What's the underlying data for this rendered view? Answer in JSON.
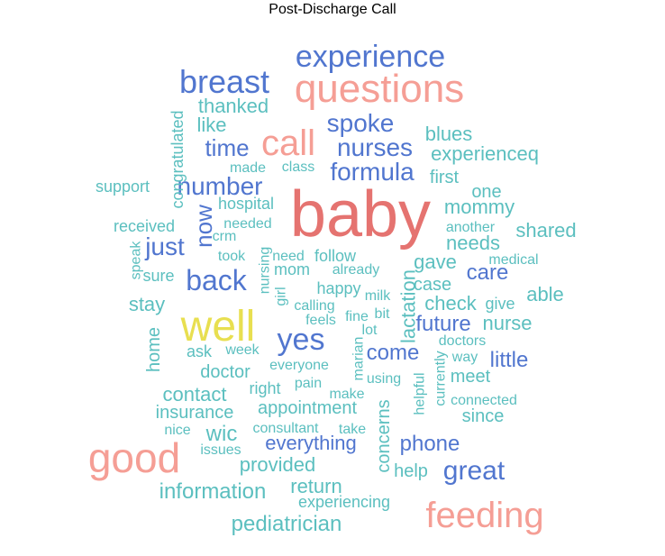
{
  "title": "Post-Discharge Call",
  "colors": {
    "red": "#e57370",
    "pink": "#f59e95",
    "blue": "#5176cf",
    "teal": "#5bbfbf",
    "yellow": "#e8df50"
  },
  "words": [
    {
      "text": "baby",
      "color": "red"
    },
    {
      "text": "well",
      "color": "yellow"
    },
    {
      "text": "questions",
      "color": "pink"
    },
    {
      "text": "good",
      "color": "pink"
    },
    {
      "text": "feeding",
      "color": "pink"
    },
    {
      "text": "call",
      "color": "pink"
    },
    {
      "text": "experience",
      "color": "blue"
    },
    {
      "text": "breast",
      "color": "blue"
    },
    {
      "text": "spoke",
      "color": "blue"
    },
    {
      "text": "nurses",
      "color": "blue"
    },
    {
      "text": "formula",
      "color": "blue"
    },
    {
      "text": "time",
      "color": "blue"
    },
    {
      "text": "number",
      "color": "blue"
    },
    {
      "text": "back",
      "color": "blue"
    },
    {
      "text": "yes",
      "color": "blue"
    },
    {
      "text": "great",
      "color": "blue"
    },
    {
      "text": "just",
      "color": "blue"
    },
    {
      "text": "now",
      "color": "blue"
    },
    {
      "text": "care",
      "color": "blue"
    },
    {
      "text": "future",
      "color": "blue"
    },
    {
      "text": "come",
      "color": "blue"
    },
    {
      "text": "little",
      "color": "blue"
    },
    {
      "text": "phone",
      "color": "blue"
    },
    {
      "text": "everything",
      "color": "blue"
    },
    {
      "text": "thanked",
      "color": "teal"
    },
    {
      "text": "like",
      "color": "teal"
    },
    {
      "text": "blues",
      "color": "teal"
    },
    {
      "text": "experienceq",
      "color": "teal"
    },
    {
      "text": "made",
      "color": "teal"
    },
    {
      "text": "class",
      "color": "teal"
    },
    {
      "text": "first",
      "color": "teal"
    },
    {
      "text": "support",
      "color": "teal"
    },
    {
      "text": "congratulated",
      "color": "teal"
    },
    {
      "text": "one",
      "color": "teal"
    },
    {
      "text": "hospital",
      "color": "teal"
    },
    {
      "text": "mommy",
      "color": "teal"
    },
    {
      "text": "received",
      "color": "teal"
    },
    {
      "text": "needed",
      "color": "teal"
    },
    {
      "text": "another",
      "color": "teal"
    },
    {
      "text": "shared",
      "color": "teal"
    },
    {
      "text": "crm",
      "color": "teal"
    },
    {
      "text": "needs",
      "color": "teal"
    },
    {
      "text": "speak",
      "color": "teal"
    },
    {
      "text": "took",
      "color": "teal"
    },
    {
      "text": "need",
      "color": "teal"
    },
    {
      "text": "follow",
      "color": "teal"
    },
    {
      "text": "medical",
      "color": "teal"
    },
    {
      "text": "sure",
      "color": "teal"
    },
    {
      "text": "nursing",
      "color": "teal"
    },
    {
      "text": "mom",
      "color": "teal"
    },
    {
      "text": "already",
      "color": "teal"
    },
    {
      "text": "gave",
      "color": "teal"
    },
    {
      "text": "happy",
      "color": "teal"
    },
    {
      "text": "case",
      "color": "teal"
    },
    {
      "text": "able",
      "color": "teal"
    },
    {
      "text": "stay",
      "color": "teal"
    },
    {
      "text": "girl",
      "color": "teal"
    },
    {
      "text": "calling",
      "color": "teal"
    },
    {
      "text": "milk",
      "color": "teal"
    },
    {
      "text": "lactation",
      "color": "teal"
    },
    {
      "text": "check",
      "color": "teal"
    },
    {
      "text": "give",
      "color": "teal"
    },
    {
      "text": "feels",
      "color": "teal"
    },
    {
      "text": "fine",
      "color": "teal"
    },
    {
      "text": "bit",
      "color": "teal"
    },
    {
      "text": "nurse",
      "color": "teal"
    },
    {
      "text": "lot",
      "color": "teal"
    },
    {
      "text": "doctors",
      "color": "teal"
    },
    {
      "text": "home",
      "color": "teal"
    },
    {
      "text": "ask",
      "color": "teal"
    },
    {
      "text": "week",
      "color": "teal"
    },
    {
      "text": "way",
      "color": "teal"
    },
    {
      "text": "marian",
      "color": "teal"
    },
    {
      "text": "everyone",
      "color": "teal"
    },
    {
      "text": "doctor",
      "color": "teal"
    },
    {
      "text": "using",
      "color": "teal"
    },
    {
      "text": "currently",
      "color": "teal"
    },
    {
      "text": "meet",
      "color": "teal"
    },
    {
      "text": "pain",
      "color": "teal"
    },
    {
      "text": "right",
      "color": "teal"
    },
    {
      "text": "make",
      "color": "teal"
    },
    {
      "text": "helpful",
      "color": "teal"
    },
    {
      "text": "contact",
      "color": "teal"
    },
    {
      "text": "connected",
      "color": "teal"
    },
    {
      "text": "appointment",
      "color": "teal"
    },
    {
      "text": "concerns",
      "color": "teal"
    },
    {
      "text": "insurance",
      "color": "teal"
    },
    {
      "text": "since",
      "color": "teal"
    },
    {
      "text": "nice",
      "color": "teal"
    },
    {
      "text": "consultant",
      "color": "teal"
    },
    {
      "text": "take",
      "color": "teal"
    },
    {
      "text": "wic",
      "color": "teal"
    },
    {
      "text": "issues",
      "color": "teal"
    },
    {
      "text": "provided",
      "color": "teal"
    },
    {
      "text": "help",
      "color": "teal"
    },
    {
      "text": "information",
      "color": "teal"
    },
    {
      "text": "return",
      "color": "teal"
    },
    {
      "text": "experiencing",
      "color": "teal"
    },
    {
      "text": "pediatrician",
      "color": "teal"
    }
  ]
}
